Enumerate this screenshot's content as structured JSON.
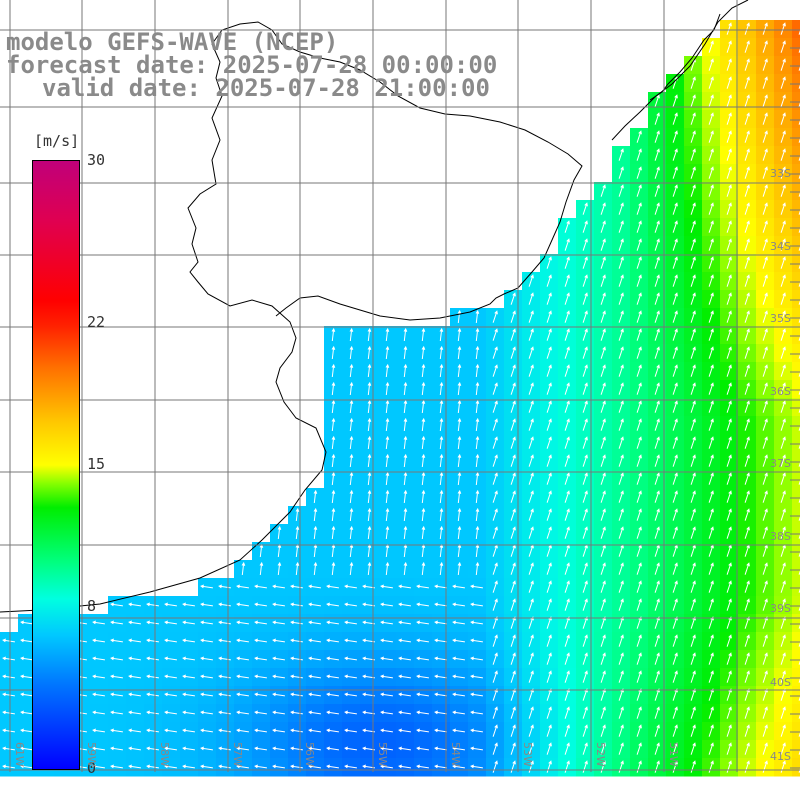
{
  "title": {
    "line1": "modelo GEFS-WAVE (NCEP)",
    "line2": "forecast date: 2025-07-28 00:00:00",
    "line3": "valid date: 2025-07-28 21:00:00"
  },
  "colorbar": {
    "unit": "[m/s]",
    "ticks": [
      "30",
      "22",
      "15",
      "8",
      "0"
    ],
    "tick_values": [
      30,
      22,
      15,
      8,
      0
    ],
    "range": [
      0,
      30
    ],
    "colors": [
      "#0000ff",
      "#00c8ff",
      "#00ff80",
      "#00ee00",
      "#ffff00",
      "#ff7000",
      "#ff0000",
      "#c0007a"
    ]
  },
  "grid": {
    "lon_labels": [
      "61W",
      "59W",
      "58W",
      "57W",
      "56W",
      "55W",
      "54W",
      "53W",
      "52W",
      "51W"
    ],
    "lat_labels": [
      "33S",
      "34S",
      "35S",
      "36S",
      "37S",
      "38S",
      "39S",
      "40S",
      "41S"
    ]
  },
  "map": {
    "region": "Rio de la Plata / Uruguay / Buenos Aires coast",
    "lon_range": [
      -62,
      -51
    ],
    "lat_range": [
      -41.3,
      -30.3
    ],
    "land_color": "#ffffff",
    "coast_color": "#000000",
    "grid_color": "#777777"
  }
}
